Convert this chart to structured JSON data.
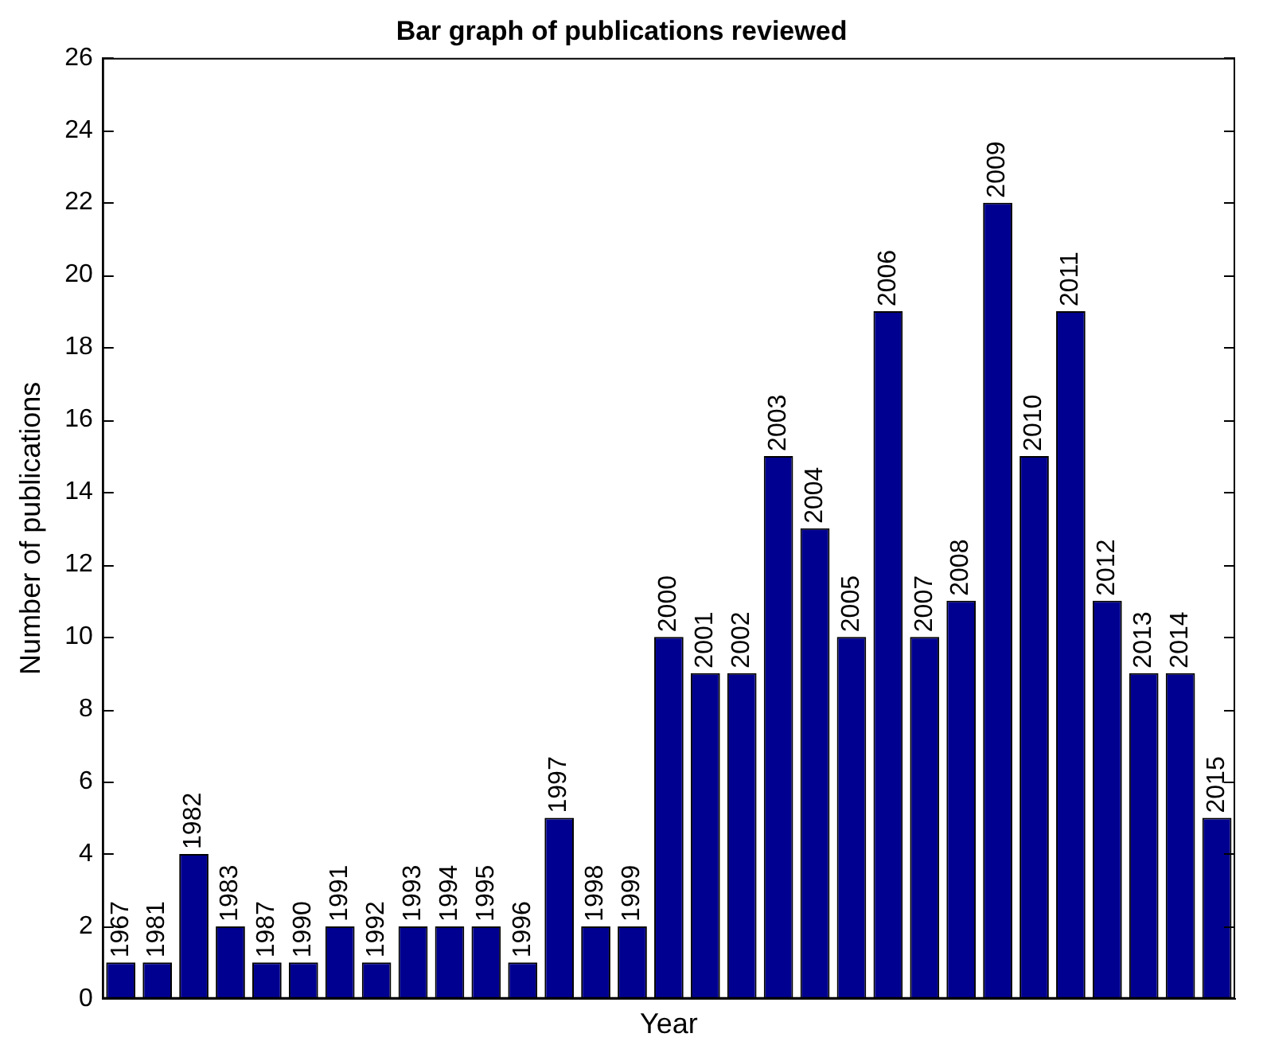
{
  "chart_data": {
    "type": "bar",
    "title": "Bar graph of publications reviewed",
    "xlabel": "Year",
    "ylabel": "Number of publications",
    "categories": [
      "1967",
      "1981",
      "1982",
      "1983",
      "1987",
      "1990",
      "1991",
      "1992",
      "1993",
      "1994",
      "1995",
      "1996",
      "1997",
      "1998",
      "1999",
      "2000",
      "2001",
      "2002",
      "2003",
      "2004",
      "2005",
      "2006",
      "2007",
      "2008",
      "2009",
      "2010",
      "2011",
      "2012",
      "2013",
      "2014",
      "2015"
    ],
    "values": [
      1,
      1,
      4,
      2,
      1,
      1,
      2,
      1,
      2,
      2,
      2,
      1,
      5,
      2,
      2,
      10,
      9,
      9,
      15,
      13,
      10,
      19,
      10,
      11,
      22,
      15,
      19,
      11,
      9,
      9,
      5
    ],
    "color": "#000090",
    "ylim": [
      0,
      26
    ],
    "yticks": [
      0,
      2,
      4,
      6,
      8,
      10,
      12,
      14,
      16,
      18,
      20,
      22,
      24,
      26
    ],
    "grid": false,
    "legend": false,
    "tick_labels": "y"
  }
}
